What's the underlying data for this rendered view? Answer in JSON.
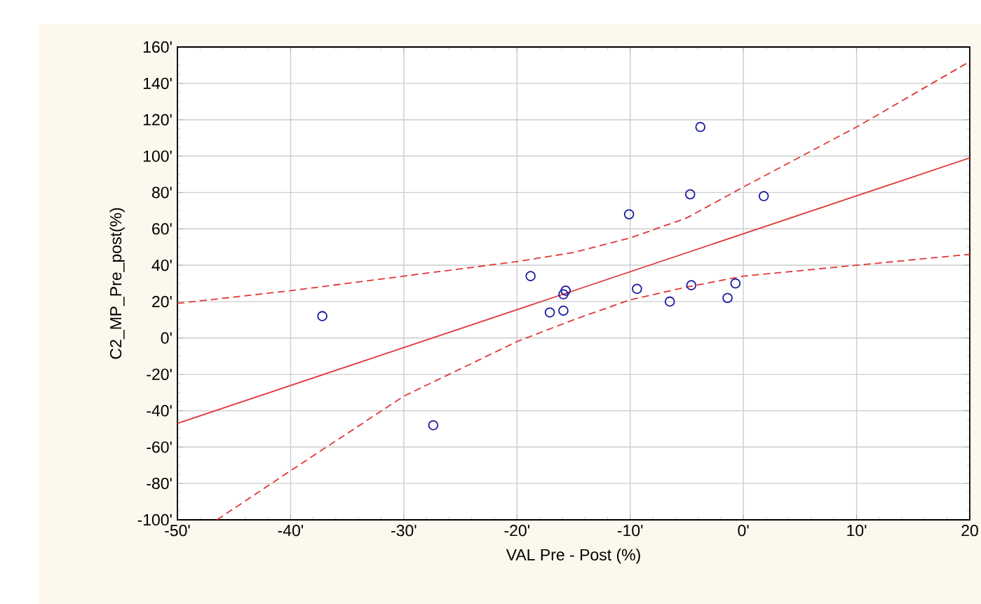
{
  "chart_data": {
    "type": "scatter",
    "xlabel": "VAL Pre - Post (%)",
    "ylabel": "C2_MP_Pre_post(%)",
    "xlim": [
      -50,
      20
    ],
    "ylim": [
      -100,
      160
    ],
    "xticks": [
      {
        "value": -50,
        "label": "-50'"
      },
      {
        "value": -40,
        "label": "-40'"
      },
      {
        "value": -30,
        "label": "-30'"
      },
      {
        "value": -20,
        "label": "-20'"
      },
      {
        "value": -10,
        "label": "-10'"
      },
      {
        "value": 0,
        "label": "0'"
      },
      {
        "value": 10,
        "label": "10'"
      },
      {
        "value": 20,
        "label": "20"
      }
    ],
    "yticks": [
      {
        "value": -100,
        "label": "-100'"
      },
      {
        "value": -80,
        "label": "-80'"
      },
      {
        "value": -60,
        "label": "-60'"
      },
      {
        "value": -40,
        "label": "-40'"
      },
      {
        "value": -20,
        "label": "-20'"
      },
      {
        "value": 0,
        "label": "0'"
      },
      {
        "value": 20,
        "label": "20'"
      },
      {
        "value": 40,
        "label": "40'"
      },
      {
        "value": 60,
        "label": "60'"
      },
      {
        "value": 80,
        "label": "80'"
      },
      {
        "value": 100,
        "label": "100'"
      },
      {
        "value": 120,
        "label": "120'"
      },
      {
        "value": 140,
        "label": "140'"
      },
      {
        "value": 160,
        "label": "160'"
      }
    ],
    "grid": true,
    "series": [
      {
        "color": "#1a1aa0",
        "marker": "circle",
        "x": [
          -37.2,
          -27.4,
          -18.8,
          -17.1,
          -15.9,
          -15.9,
          -15.7,
          -10.1,
          -9.4,
          -6.5,
          -4.7,
          -4.6,
          -3.8,
          -1.4,
          -0.7,
          1.8
        ],
        "values": [
          12,
          -48,
          34,
          14,
          15,
          24,
          26,
          68,
          27,
          20,
          79,
          29,
          116,
          22,
          30,
          78
        ]
      },
      {
        "type": "line",
        "color": "#e03838",
        "marker": "none",
        "line_style": "solid",
        "x": [
          -50,
          20
        ],
        "values": [
          -47,
          99
        ]
      },
      {
        "type": "line",
        "color": "#e03838",
        "marker": "none",
        "line_style": "dashed",
        "x": [
          -50,
          -40,
          -30,
          -20,
          -15,
          -10,
          -5,
          0,
          10,
          20
        ],
        "values": [
          19,
          26,
          34,
          42,
          47,
          55,
          66,
          83,
          116,
          152
        ]
      },
      {
        "type": "line",
        "color": "#e03838",
        "marker": "none",
        "line_style": "dashed",
        "x": [
          -46.5,
          -40,
          -30,
          -20,
          -15,
          -10,
          -5,
          0,
          10,
          20
        ],
        "values": [
          -100,
          -73,
          -32,
          -2,
          10,
          21,
          28,
          34,
          40,
          46
        ]
      }
    ]
  }
}
